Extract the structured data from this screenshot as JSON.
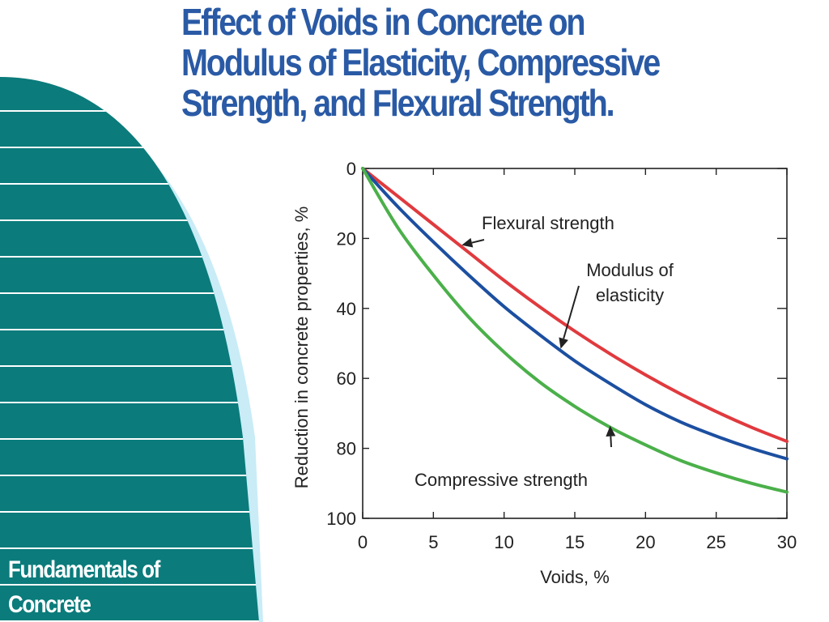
{
  "slide": {
    "title_lines": [
      "Effect of Voids in Concrete on",
      "Modulus of Elasticity, Compressive",
      "Strength, and Flexural Strength."
    ],
    "footer_lines": [
      "Fundamentals of",
      "Concrete"
    ]
  },
  "colors": {
    "teal": "#0b7b7b",
    "light_blue": "#c9ecf7",
    "title": "#2a5aa5",
    "flexural": "#e03a3e",
    "modulus": "#1c4fa0",
    "compressive": "#4bb04a"
  },
  "chart_data": {
    "type": "line",
    "xlabel": "Voids, %",
    "ylabel": "Reduction in concrete properties, %",
    "xlim": [
      0,
      30
    ],
    "ylim": [
      0,
      100
    ],
    "y_inverted": true,
    "xticks": [
      0,
      5,
      10,
      15,
      20,
      25,
      30
    ],
    "yticks": [
      0,
      20,
      40,
      60,
      80,
      100
    ],
    "x": [
      0,
      2.5,
      5,
      7.5,
      10,
      12.5,
      15,
      17.5,
      20,
      22.5,
      25,
      27.5,
      30
    ],
    "series": [
      {
        "name": "Flexural strength",
        "color": "#e03a3e",
        "values": [
          0,
          8,
          16,
          24,
          32,
          39.5,
          46.5,
          53,
          59,
          64.5,
          69.5,
          74,
          78
        ]
      },
      {
        "name": "Modulus of elasticity",
        "color": "#1c4fa0",
        "values": [
          0,
          11,
          21,
          30.5,
          39.5,
          47.5,
          55,
          61.5,
          67.5,
          72.5,
          76.5,
          80,
          83
        ]
      },
      {
        "name": "Compressive strength",
        "color": "#4bb04a",
        "values": [
          0,
          17,
          30.5,
          42.5,
          52.5,
          61,
          68,
          74,
          79,
          83.5,
          87,
          90,
          92.5
        ]
      }
    ],
    "annotations": [
      {
        "lines": [
          "Flexural strength"
        ],
        "target_series": "Flexural strength",
        "target_x": 7
      },
      {
        "lines": [
          "Modulus of",
          "elasticity"
        ],
        "target_series": "Modulus of elasticity",
        "target_x": 14
      },
      {
        "lines": [
          "Compressive strength"
        ],
        "target_series": "Compressive strength",
        "target_x": 17.5
      }
    ],
    "grid": false
  }
}
